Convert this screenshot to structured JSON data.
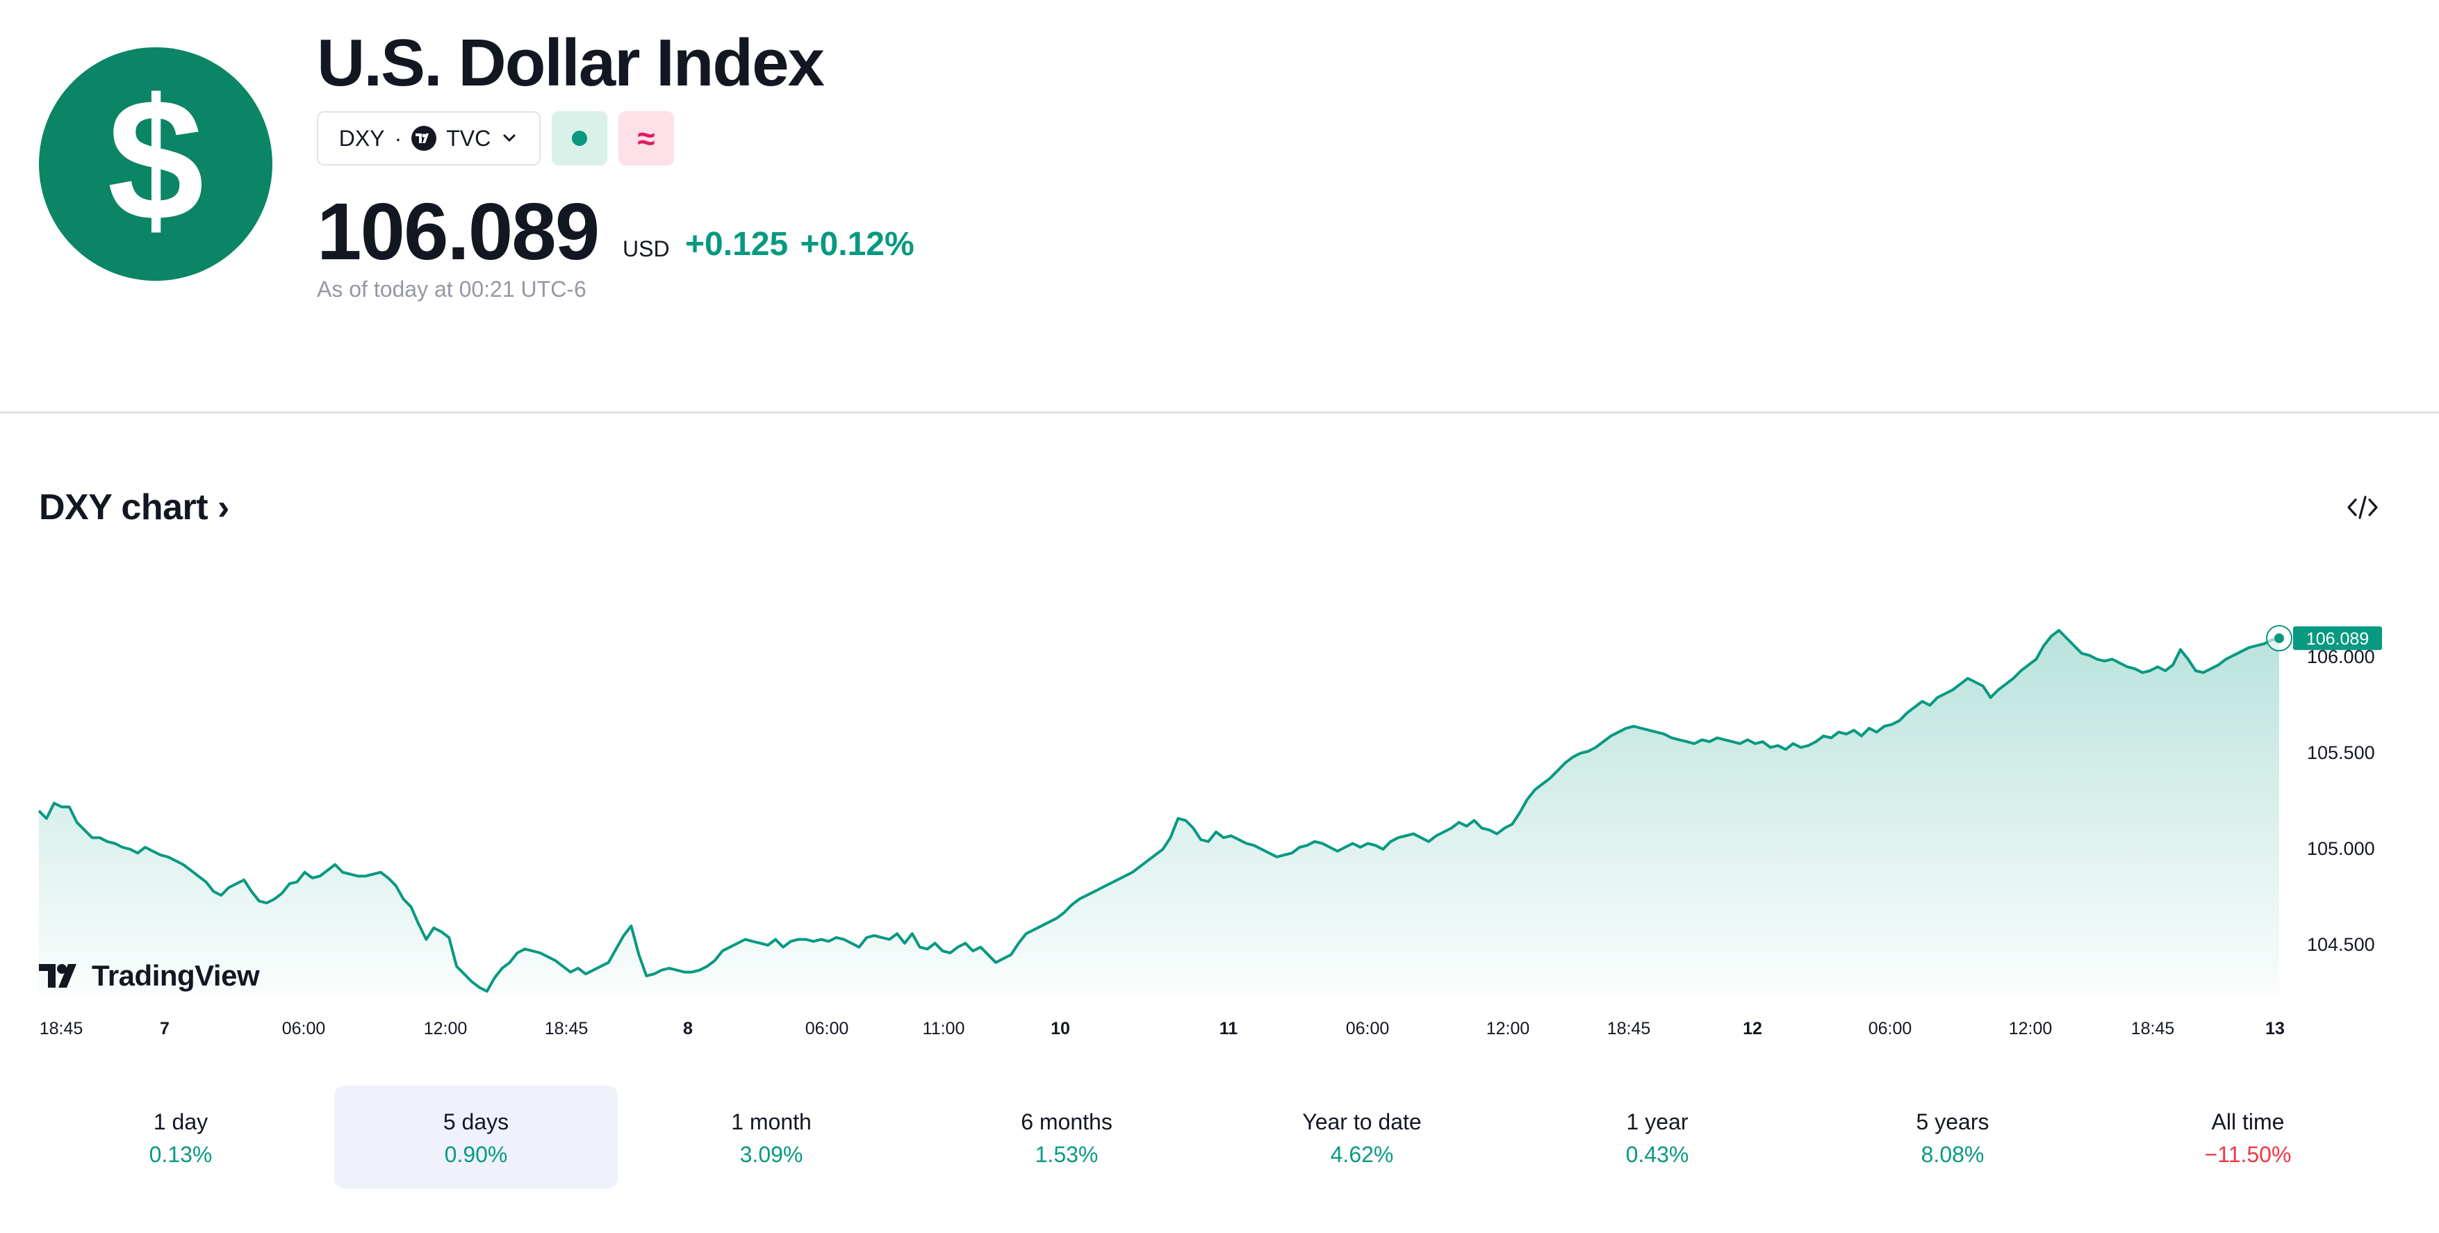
{
  "header": {
    "logo_icon": "dollar-sign-icon",
    "title": "U.S. Dollar Index",
    "symbol": "DXY",
    "separator": "·",
    "exchange": "TVC",
    "price": "106.089",
    "currency": "USD",
    "change": "+0.125",
    "change_percent": "+0.12%",
    "as_of": "As of today at 00:21 UTC-6",
    "colors": {
      "brand": "#0b8566",
      "up": "#089981",
      "down": "#f23645"
    }
  },
  "chart_section": {
    "title": "DXY chart",
    "title_chevron": "›",
    "embed_icon": "code-embed-icon",
    "watermark": "TradingView"
  },
  "chart_data": {
    "type": "area",
    "series": [
      {
        "values": [
          105.19,
          105.15,
          105.23,
          105.21,
          105.21,
          105.13,
          105.09,
          105.05,
          105.05,
          105.03,
          105.02,
          105.0,
          104.99,
          104.97,
          105.0,
          104.98,
          104.96,
          104.95,
          104.93,
          104.91,
          104.88,
          104.85,
          104.82,
          104.77,
          104.75,
          104.79,
          104.81,
          104.83,
          104.77,
          104.72,
          104.71,
          104.73,
          104.76,
          104.81,
          104.82,
          104.87,
          104.84,
          104.85,
          104.88,
          104.91,
          104.87,
          104.86,
          104.85,
          104.85,
          104.86,
          104.87,
          104.84,
          104.8,
          104.73,
          104.69,
          104.6,
          104.52,
          104.58,
          104.56,
          104.53,
          104.38,
          104.34,
          104.3,
          104.27,
          104.25,
          104.32,
          104.37,
          104.4,
          104.45,
          104.47,
          104.46,
          104.45,
          104.43,
          104.41,
          104.38,
          104.35,
          104.37,
          104.34,
          104.36,
          104.38,
          104.4,
          104.47,
          104.54,
          104.59,
          104.44,
          104.33,
          104.34,
          104.36,
          104.37,
          104.36,
          104.35,
          104.35,
          104.36,
          104.38,
          104.41,
          104.46,
          104.48,
          104.5,
          104.52,
          104.51,
          104.5,
          104.49,
          104.52,
          104.48,
          104.51,
          104.52,
          104.52,
          104.51,
          104.52,
          104.51,
          104.53,
          104.52,
          104.5,
          104.48,
          104.53,
          104.54,
          104.53,
          104.52,
          104.55,
          104.5,
          104.55,
          104.48,
          104.47,
          104.5,
          104.46,
          104.45,
          104.48,
          104.5,
          104.46,
          104.48,
          104.44,
          104.4,
          104.42,
          104.44,
          104.5,
          104.55,
          104.57,
          104.59,
          104.61,
          104.63,
          104.66,
          104.7,
          104.73,
          104.75,
          104.77,
          104.79,
          104.81,
          104.83,
          104.85,
          104.87,
          104.9,
          104.93,
          104.96,
          104.99,
          105.05,
          105.15,
          105.14,
          105.1,
          105.04,
          105.03,
          105.08,
          105.05,
          105.06,
          105.04,
          105.02,
          105.01,
          104.99,
          104.97,
          104.95,
          104.96,
          104.97,
          105.0,
          105.01,
          105.03,
          105.02,
          105.0,
          104.98,
          105.0,
          105.02,
          105.0,
          105.02,
          105.01,
          104.99,
          105.03,
          105.05,
          105.06,
          105.07,
          105.05,
          105.03,
          105.06,
          105.08,
          105.1,
          105.13,
          105.11,
          105.14,
          105.1,
          105.09,
          105.07,
          105.1,
          105.12,
          105.18,
          105.25,
          105.3,
          105.33,
          105.36,
          105.4,
          105.44,
          105.47,
          105.49,
          105.5,
          105.52,
          105.55,
          105.58,
          105.6,
          105.62,
          105.63,
          105.62,
          105.61,
          105.6,
          105.59,
          105.57,
          105.56,
          105.55,
          105.54,
          105.56,
          105.55,
          105.57,
          105.56,
          105.55,
          105.54,
          105.56,
          105.54,
          105.55,
          105.52,
          105.53,
          105.51,
          105.54,
          105.52,
          105.53,
          105.55,
          105.58,
          105.57,
          105.6,
          105.59,
          105.61,
          105.58,
          105.62,
          105.6,
          105.63,
          105.64,
          105.66,
          105.7,
          105.73,
          105.76,
          105.74,
          105.78,
          105.8,
          105.82,
          105.85,
          105.88,
          105.86,
          105.84,
          105.78,
          105.82,
          105.85,
          105.88,
          105.92,
          105.95,
          105.98,
          106.05,
          106.1,
          106.13,
          106.09,
          106.05,
          106.01,
          106.0,
          105.98,
          105.97,
          105.98,
          105.96,
          105.94,
          105.93,
          105.91,
          105.92,
          105.94,
          105.92,
          105.95,
          106.03,
          105.98,
          105.92,
          105.91,
          105.93,
          105.95,
          105.98,
          106.0,
          106.02,
          106.04,
          106.05,
          106.06,
          106.08,
          106.089
        ],
        "color": "#089981"
      }
    ],
    "x_tick_labels": [
      "18:45",
      "7",
      "06:00",
      "12:00",
      "18:45",
      "8",
      "06:00",
      "11:00",
      "10",
      "11",
      "06:00",
      "12:00",
      "18:45",
      "12",
      "06:00",
      "12:00",
      "18:45",
      "13"
    ],
    "x_tick_bold": [
      false,
      true,
      false,
      false,
      false,
      true,
      false,
      false,
      true,
      true,
      false,
      false,
      false,
      true,
      false,
      false,
      false,
      true
    ],
    "y_tick_labels": [
      "106.000",
      "105.500",
      "105.000",
      "104.500"
    ],
    "y_ticks": [
      106.0,
      105.5,
      105.0,
      104.5
    ],
    "ylim": [
      104.2,
      106.3
    ],
    "last_value_label": "106.089",
    "last_value": 106.089,
    "grid": false
  },
  "periods": [
    {
      "label": "1 day",
      "value": "0.13%",
      "negative": false,
      "active": false
    },
    {
      "label": "5 days",
      "value": "0.90%",
      "negative": false,
      "active": true
    },
    {
      "label": "1 month",
      "value": "3.09%",
      "negative": false,
      "active": false
    },
    {
      "label": "6 months",
      "value": "1.53%",
      "negative": false,
      "active": false
    },
    {
      "label": "Year to date",
      "value": "4.62%",
      "negative": false,
      "active": false
    },
    {
      "label": "1 year",
      "value": "0.43%",
      "negative": false,
      "active": false
    },
    {
      "label": "5 years",
      "value": "8.08%",
      "negative": false,
      "active": false
    },
    {
      "label": "All time",
      "value": "−11.50%",
      "negative": true,
      "active": false
    }
  ]
}
